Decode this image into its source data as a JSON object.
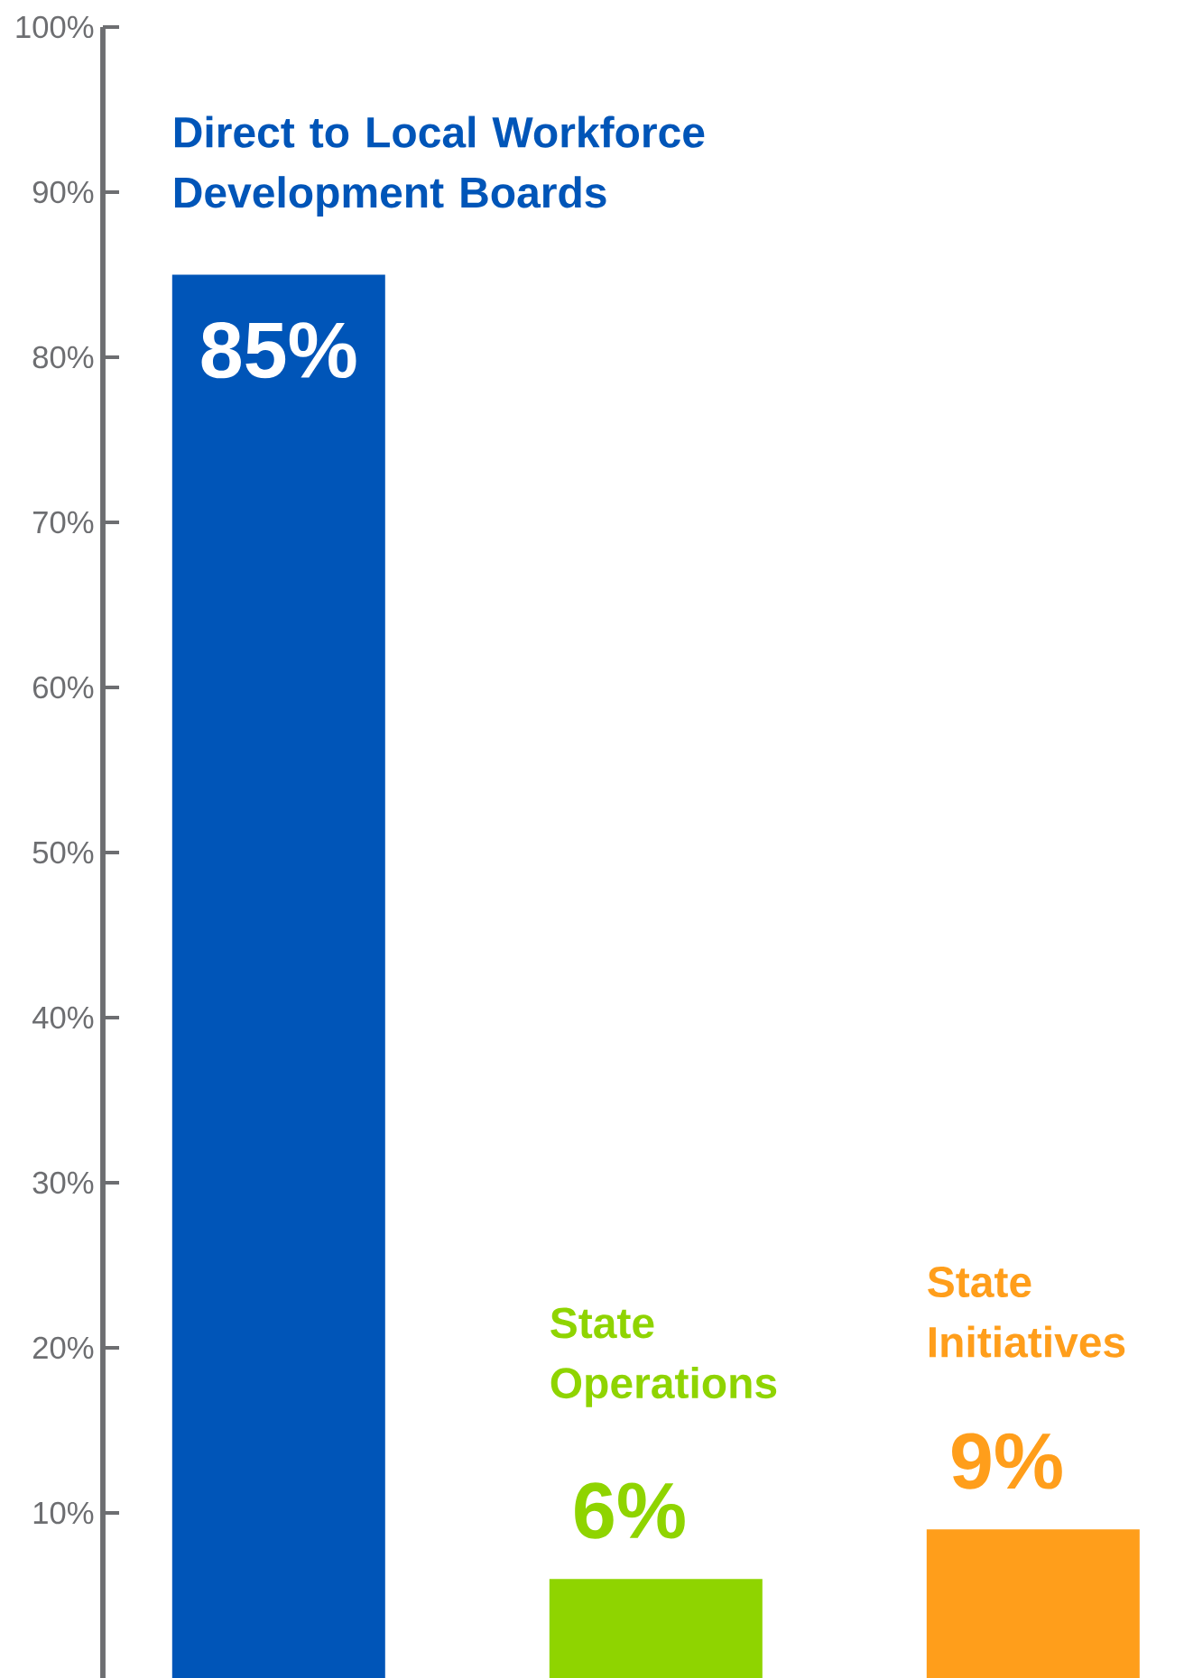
{
  "chart_data": {
    "type": "bar",
    "categories": [
      "Direct to Local Workforce Development Boards",
      "State Operations",
      "State Initiatives"
    ],
    "values": [
      85,
      6,
      9
    ],
    "colors": [
      "#0055b8",
      "#8fd400",
      "#ff9e1b"
    ],
    "value_labels": [
      "85%",
      "6%",
      "9%"
    ],
    "ylim": [
      0,
      100
    ],
    "yticks": [
      {
        "value": 10,
        "label": "10%"
      },
      {
        "value": 20,
        "label": "20%"
      },
      {
        "value": 30,
        "label": "30%"
      },
      {
        "value": 40,
        "label": "40%"
      },
      {
        "value": 50,
        "label": "50%"
      },
      {
        "value": 60,
        "label": "60%"
      },
      {
        "value": 70,
        "label": "70%"
      },
      {
        "value": 80,
        "label": "80%"
      },
      {
        "value": 90,
        "label": "90%"
      },
      {
        "value": 100,
        "label": "100%"
      }
    ],
    "grid": false
  }
}
